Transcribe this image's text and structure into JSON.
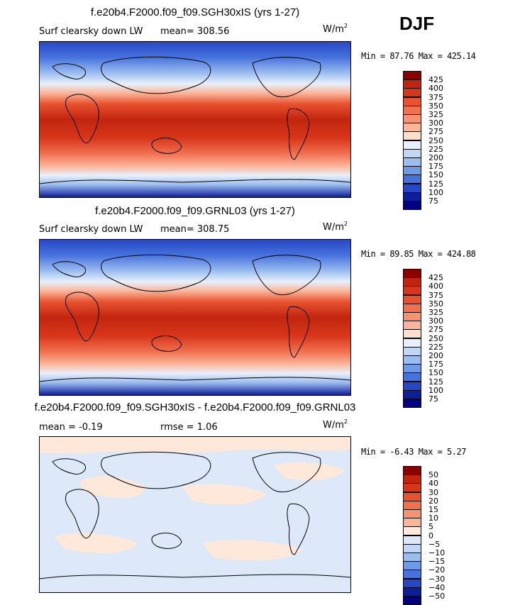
{
  "season": "DJF",
  "panels": [
    {
      "title": "f.e20b4.F2000.f09_f09.SGH30xIS (yrs 1-27)",
      "variable": "Surf clearsky down LW",
      "stat_text": "mean= 308.56",
      "units_base": "W/m",
      "units_exp": "2",
      "minmax": "Min =  87.76 Max = 425.14",
      "levels": [
        "425",
        "400",
        "375",
        "350",
        "325",
        "300",
        "275",
        "250",
        "225",
        "200",
        "175",
        "150",
        "125",
        "100",
        "75"
      ],
      "colors": [
        "#8b0000",
        "#c2250f",
        "#d8361b",
        "#e8522f",
        "#f07050",
        "#f69373",
        "#fbb599",
        "#fde0cc",
        "#e8f0fb",
        "#c2d7f5",
        "#9bbdf0",
        "#6f9ae9",
        "#4672dc",
        "#2748c6",
        "#0e1e99",
        "#000080"
      ]
    },
    {
      "title": "f.e20b4.F2000.f09_f09.GRNL03 (yrs 1-27)",
      "variable": "Surf clearsky down LW",
      "stat_text": "mean= 308.75",
      "units_base": "W/m",
      "units_exp": "2",
      "minmax": "Min =  89.85 Max = 424.88",
      "levels": [
        "425",
        "400",
        "375",
        "350",
        "325",
        "300",
        "275",
        "250",
        "225",
        "200",
        "175",
        "150",
        "125",
        "100",
        "75"
      ],
      "colors": [
        "#8b0000",
        "#c2250f",
        "#d8361b",
        "#e8522f",
        "#f07050",
        "#f69373",
        "#fbb599",
        "#fde0cc",
        "#e8f0fb",
        "#c2d7f5",
        "#9bbdf0",
        "#6f9ae9",
        "#4672dc",
        "#2748c6",
        "#0e1e99",
        "#000080"
      ]
    },
    {
      "title": "f.e20b4.F2000.f09_f09.SGH30xIS - f.e20b4.F2000.f09_f09.GRNL03",
      "stat_mean": "mean =   -0.19",
      "stat_rmse": "rmse =    1.06",
      "units_base": "W/m",
      "units_exp": "2",
      "minmax": "Min =  -6.43 Max =   5.27",
      "levels": [
        "50",
        "40",
        "30",
        "20",
        "15",
        "10",
        "5",
        "0",
        "-5",
        "-10",
        "-15",
        "-20",
        "-30",
        "-40",
        "-50"
      ],
      "colors": [
        "#8b0000",
        "#c2250f",
        "#d8361b",
        "#e8522f",
        "#f07050",
        "#f69373",
        "#fbb599",
        "#fde8da",
        "#dde9f8",
        "#c2d7f5",
        "#9bbdf0",
        "#6f9ae9",
        "#4672dc",
        "#2748c6",
        "#0e1e99",
        "#000080"
      ]
    }
  ],
  "chart_data": [
    {
      "type": "heatmap",
      "title": "f.e20b4.F2000.f09_f09.SGH30xIS (yrs 1-27)",
      "subtitle": "Surf clearsky down LW",
      "mean": 308.56,
      "min": 87.76,
      "max": 425.14,
      "units": "W/m2",
      "contour_levels": [
        75,
        100,
        125,
        150,
        175,
        200,
        225,
        250,
        275,
        300,
        325,
        350,
        375,
        400,
        425
      ]
    },
    {
      "type": "heatmap",
      "title": "f.e20b4.F2000.f09_f09.GRNL03 (yrs 1-27)",
      "subtitle": "Surf clearsky down LW",
      "mean": 308.75,
      "min": 89.85,
      "max": 424.88,
      "units": "W/m2",
      "contour_levels": [
        75,
        100,
        125,
        150,
        175,
        200,
        225,
        250,
        275,
        300,
        325,
        350,
        375,
        400,
        425
      ]
    },
    {
      "type": "heatmap",
      "title": "f.e20b4.F2000.f09_f09.SGH30xIS - f.e20b4.F2000.f09_f09.GRNL03",
      "mean": -0.19,
      "rmse": 1.06,
      "min": -6.43,
      "max": 5.27,
      "units": "W/m2",
      "contour_levels": [
        -50,
        -40,
        -30,
        -20,
        -15,
        -10,
        -5,
        0,
        5,
        10,
        15,
        20,
        30,
        40,
        50
      ]
    }
  ]
}
